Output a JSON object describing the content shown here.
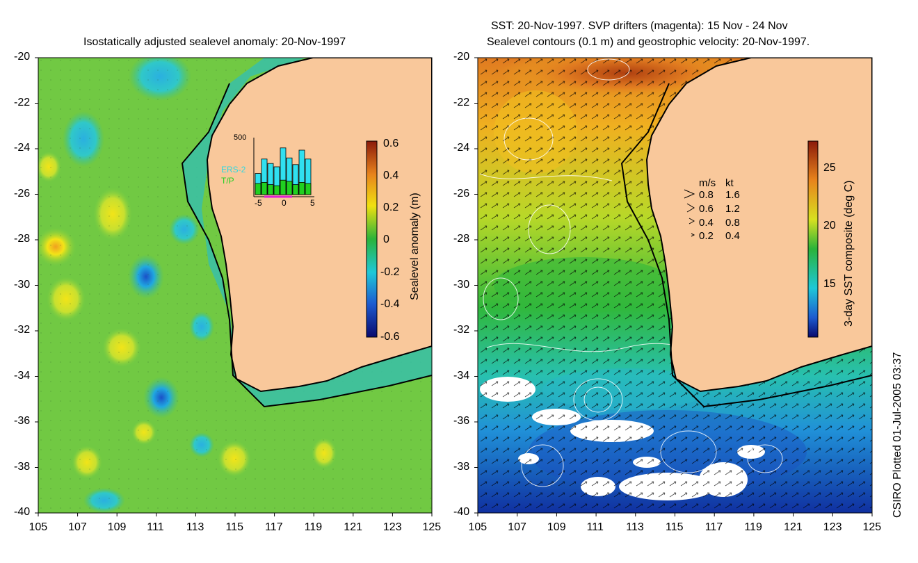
{
  "left_panel": {
    "title": "Isostatically adjusted sealevel anomaly: 20-Nov-1997",
    "y_ticks": [
      "-20",
      "-22",
      "-24",
      "-26",
      "-28",
      "-30",
      "-32",
      "-34",
      "-36",
      "-38",
      "-40"
    ],
    "x_ticks": [
      "105",
      "107",
      "109",
      "111",
      "113",
      "115",
      "117",
      "119",
      "121",
      "123",
      "125"
    ],
    "colorbar": {
      "label": "Sealevel anomaly (m)",
      "ticks": [
        "0.6",
        "0.4",
        "0.2",
        "0",
        "-0.2",
        "-0.4",
        "-0.6"
      ]
    },
    "inset": {
      "ymax_label": "500",
      "series": [
        "ERS-2",
        "T/P"
      ],
      "x_ticks": [
        "-5",
        "0",
        "5"
      ],
      "ers2_values": [
        190,
        320,
        280,
        250,
        420,
        330,
        270,
        400,
        320
      ],
      "tp_values": [
        100,
        110,
        90,
        80,
        130,
        120,
        90,
        110,
        100
      ],
      "ymax": 500
    }
  },
  "right_panel": {
    "title_line1": "SST: 20-Nov-1997. SVP drifters (magenta): 15 Nov - 24 Nov",
    "title_line2": "Sealevel contours (0.1 m) and geostrophic velocity: 20-Nov-1997.",
    "y_ticks": [
      "-20",
      "-22",
      "-24",
      "-26",
      "-28",
      "-30",
      "-32",
      "-34",
      "-36",
      "-38",
      "-40"
    ],
    "x_ticks": [
      "105",
      "107",
      "109",
      "111",
      "113",
      "115",
      "117",
      "119",
      "121",
      "123",
      "125"
    ],
    "colorbar": {
      "label": "3-day SST composite (deg C)",
      "ticks": [
        "25",
        "20",
        "15"
      ]
    },
    "velocity_legend": {
      "header_ms": "m/s",
      "header_kt": "kt",
      "rows": [
        {
          "ms": "0.8",
          "kt": "1.6"
        },
        {
          "ms": "0.6",
          "kt": "1.2"
        },
        {
          "ms": "0.4",
          "kt": "0.8"
        },
        {
          "ms": "0.2",
          "kt": "0.4"
        }
      ]
    }
  },
  "credit": "CSIRO Plotted 01-Jul-2005 03:37",
  "colors": {
    "land": "#f9c89b",
    "coast": "#000000"
  }
}
